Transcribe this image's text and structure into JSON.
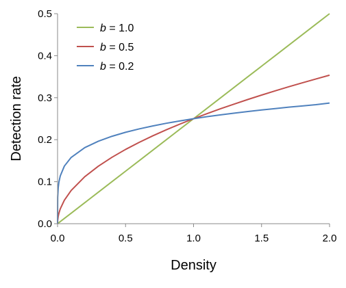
{
  "chart_data": {
    "type": "line",
    "title": "",
    "xlabel": "Density",
    "ylabel": "Detection rate",
    "xlim": [
      0.0,
      2.0
    ],
    "ylim": [
      0.0,
      0.5
    ],
    "x_ticks": [
      "0.0",
      "0.5",
      "1.0",
      "1.5",
      "2.0"
    ],
    "y_ticks": [
      "0.0",
      "0.1",
      "0.2",
      "0.3",
      "0.4",
      "0.5"
    ],
    "grid": false,
    "legend_position": "top-left",
    "x": [
      0.0,
      0.001,
      0.005,
      0.01,
      0.02,
      0.05,
      0.1,
      0.2,
      0.3,
      0.4,
      0.5,
      0.6,
      0.7,
      0.8,
      0.9,
      1.0,
      1.1,
      1.2,
      1.3,
      1.4,
      1.5,
      1.6,
      1.7,
      1.8,
      1.9,
      2.0
    ],
    "series": [
      {
        "name": "b = 1.0",
        "legend_var": "b",
        "legend_rest": " = 1.0",
        "color": "#9BBB59",
        "values": [
          0.0,
          0.0003,
          0.0013,
          0.0025,
          0.005,
          0.0125,
          0.025,
          0.05,
          0.075,
          0.1,
          0.125,
          0.15,
          0.175,
          0.2,
          0.225,
          0.25,
          0.275,
          0.3,
          0.325,
          0.35,
          0.375,
          0.4,
          0.425,
          0.45,
          0.475,
          0.5
        ]
      },
      {
        "name": "b = 0.5",
        "legend_var": "b",
        "legend_rest": " = 0.5",
        "color": "#C0504D",
        "values": [
          0.0,
          0.0079,
          0.0177,
          0.025,
          0.0354,
          0.0559,
          0.0791,
          0.1118,
          0.1369,
          0.1581,
          0.1768,
          0.1936,
          0.2092,
          0.2236,
          0.2372,
          0.25,
          0.2622,
          0.2739,
          0.285,
          0.2958,
          0.3062,
          0.3162,
          0.326,
          0.3354,
          0.3446,
          0.3536
        ]
      },
      {
        "name": "b = 0.2",
        "legend_var": "b",
        "legend_rest": " = 0.2",
        "color": "#4F81BD",
        "values": [
          0.0,
          0.0628,
          0.0862,
          0.0991,
          0.1138,
          0.1371,
          0.1577,
          0.1811,
          0.1964,
          0.2081,
          0.2176,
          0.2257,
          0.2327,
          0.2391,
          0.2447,
          0.25,
          0.2548,
          0.2592,
          0.2632,
          0.2671,
          0.2707,
          0.2741,
          0.2774,
          0.2804,
          0.2834,
          0.2872
        ]
      }
    ]
  }
}
